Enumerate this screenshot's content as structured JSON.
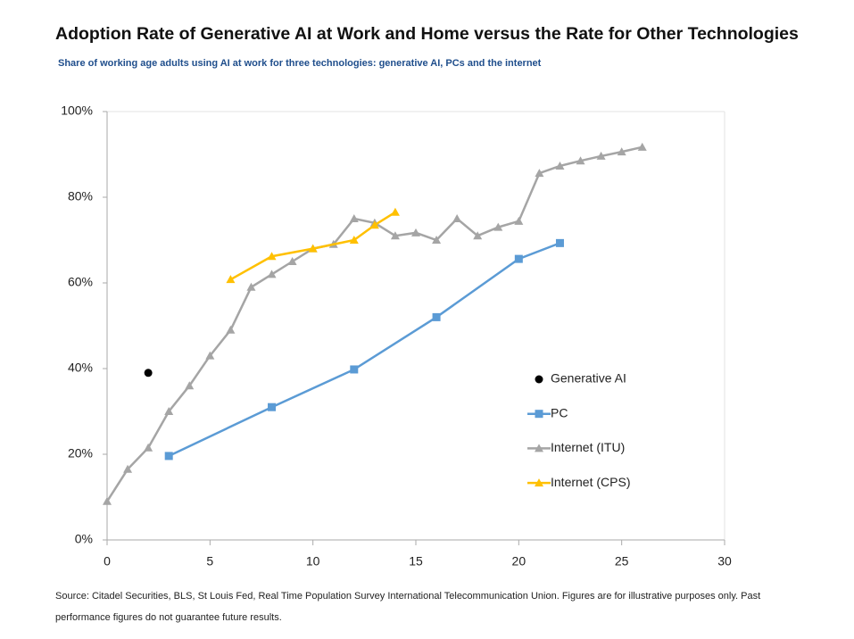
{
  "chart_data": {
    "type": "line",
    "title": "Adoption Rate of Generative AI at Work and Home versus the Rate for Other Technologies",
    "subtitle": "Share of working age adults using AI at work for three technologies: generative AI, PCs and the internet",
    "source": "Source: Citadel Securities, BLS, St Louis Fed, Real Time Population Survey International Telecommunication Union. Figures are for illustrative purposes only. Past performance figures do not guarantee future results.",
    "xlim": [
      0,
      30
    ],
    "xticks": [
      0,
      5,
      10,
      15,
      20,
      25,
      30
    ],
    "ylim": [
      0,
      100
    ],
    "yticks": [
      {
        "value": 0,
        "label": "0%"
      },
      {
        "value": 20,
        "label": "20%"
      },
      {
        "value": 40,
        "label": "40%"
      },
      {
        "value": 60,
        "label": "60%"
      },
      {
        "value": 80,
        "label": "80%"
      },
      {
        "value": 100,
        "label": "100%"
      }
    ],
    "legend": "right",
    "series": [
      {
        "name": "Generative AI",
        "color": "#000000",
        "marker": "circle",
        "line": false,
        "x": [
          2
        ],
        "values": [
          39
        ]
      },
      {
        "name": "PC",
        "color": "#5b9bd5",
        "marker": "square",
        "line": true,
        "x": [
          3,
          8,
          12,
          16,
          20,
          22
        ],
        "values": [
          19.6,
          31,
          39.8,
          52,
          65.6,
          69.3
        ]
      },
      {
        "name": "Internet (ITU)",
        "color": "#a5a5a5",
        "marker": "triangle",
        "line": true,
        "x": [
          0,
          1,
          2,
          3,
          4,
          5,
          6,
          7,
          8,
          9,
          10,
          11,
          12,
          13,
          14,
          15,
          16,
          17,
          18,
          19,
          20,
          21,
          22,
          23,
          24,
          25,
          26
        ],
        "values": [
          9,
          16.5,
          21.5,
          30,
          36,
          43,
          49,
          59,
          62,
          65,
          68,
          69,
          75,
          74,
          71,
          71.7,
          70,
          75,
          71,
          73,
          74.4,
          85.6,
          87.3,
          88.5,
          89.6,
          90.6,
          91.7
        ]
      },
      {
        "name": "Internet (CPS)",
        "color": "#ffc000",
        "marker": "triangle",
        "line": true,
        "x": [
          6,
          8,
          10,
          12,
          13,
          14
        ],
        "values": [
          60.8,
          66.2,
          68,
          70,
          73.5,
          76.5
        ]
      }
    ]
  }
}
